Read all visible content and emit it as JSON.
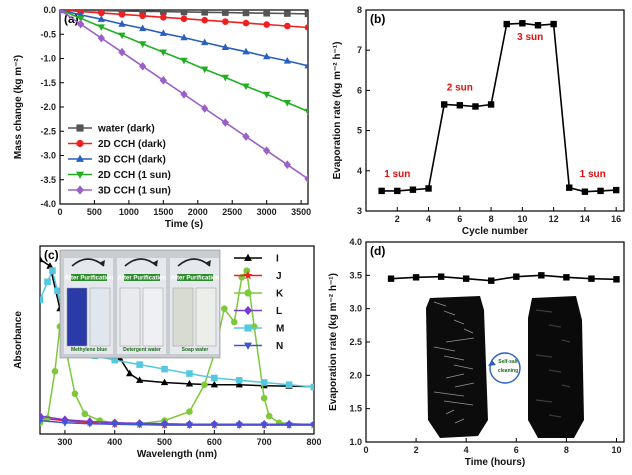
{
  "chart_data": [
    {
      "id": "a",
      "type": "line",
      "panel_label": "(a)",
      "xlabel": "Time (s)",
      "ylabel": "Mass change (kg m⁻²)",
      "xlim": [
        0,
        3600
      ],
      "ylim": [
        -4.0,
        0.0
      ],
      "xticks": [
        0,
        500,
        1000,
        1500,
        2000,
        2500,
        3000,
        3500
      ],
      "yticks": [
        0.0,
        -0.5,
        -1.0,
        -1.5,
        -2.0,
        -2.5,
        -3.0,
        -3.5,
        -4.0
      ],
      "ytick_labels": [
        "0.0",
        "-0.5",
        "-1.0",
        "-1.5",
        "-2.0",
        "-2.5",
        "-3.0",
        "-3.5",
        "-4.0"
      ],
      "legend_position": "lower-left",
      "series": [
        {
          "name": "water (dark)",
          "color": "#555555",
          "marker": "square",
          "x": [
            0,
            300,
            600,
            900,
            1200,
            1500,
            1800,
            2100,
            2400,
            2700,
            3000,
            3300,
            3600
          ],
          "y": [
            0,
            -0.007,
            -0.013,
            -0.02,
            -0.027,
            -0.033,
            -0.04,
            -0.047,
            -0.053,
            -0.06,
            -0.067,
            -0.073,
            -0.08
          ]
        },
        {
          "name": "2D CCH (dark)",
          "color": "#f02020",
          "marker": "circle",
          "x": [
            0,
            300,
            600,
            900,
            1200,
            1500,
            1800,
            2100,
            2400,
            2700,
            3000,
            3300,
            3600
          ],
          "y": [
            0,
            -0.03,
            -0.06,
            -0.09,
            -0.12,
            -0.15,
            -0.18,
            -0.21,
            -0.24,
            -0.27,
            -0.3,
            -0.33,
            -0.36
          ]
        },
        {
          "name": "3D CCH (dark)",
          "color": "#2a5fc0",
          "marker": "triangle-up",
          "x": [
            0,
            300,
            600,
            900,
            1200,
            1500,
            1800,
            2100,
            2400,
            2700,
            3000,
            3300,
            3600
          ],
          "y": [
            0,
            -0.1,
            -0.19,
            -0.29,
            -0.38,
            -0.48,
            -0.57,
            -0.67,
            -0.77,
            -0.86,
            -0.96,
            -1.05,
            -1.15
          ]
        },
        {
          "name": "2D CCH (1 sun)",
          "color": "#22b022",
          "marker": "triangle-down",
          "x": [
            0,
            300,
            600,
            900,
            1200,
            1500,
            1800,
            2100,
            2400,
            2700,
            3000,
            3300,
            3600
          ],
          "y": [
            0,
            -0.17,
            -0.35,
            -0.52,
            -0.7,
            -0.87,
            -1.04,
            -1.22,
            -1.39,
            -1.57,
            -1.74,
            -1.91,
            -2.09
          ]
        },
        {
          "name": "3D CCH (1 sun)",
          "color": "#9a60c8",
          "marker": "diamond",
          "x": [
            0,
            300,
            600,
            900,
            1200,
            1500,
            1800,
            2100,
            2400,
            2700,
            3000,
            3300,
            3600
          ],
          "y": [
            0,
            -0.29,
            -0.58,
            -0.87,
            -1.16,
            -1.45,
            -1.74,
            -2.03,
            -2.32,
            -2.61,
            -2.9,
            -3.19,
            -3.48
          ]
        }
      ]
    },
    {
      "id": "b",
      "type": "line",
      "panel_label": "(b)",
      "xlabel": "Cycle number",
      "ylabel": "Evaporation rate (kg m⁻² h⁻¹)",
      "xlim": [
        0,
        16.5
      ],
      "ylim": [
        3,
        8
      ],
      "xticks": [
        2,
        4,
        6,
        8,
        10,
        12,
        14,
        16
      ],
      "yticks": [
        3,
        4,
        5,
        6,
        7,
        8
      ],
      "series": [
        {
          "color": "#000000",
          "marker": "square",
          "x": [
            1,
            2,
            3,
            4,
            5,
            6,
            7,
            8,
            9,
            10,
            11,
            12,
            13,
            14,
            15,
            16
          ],
          "y": [
            3.5,
            3.5,
            3.53,
            3.56,
            5.65,
            5.63,
            5.6,
            5.65,
            7.65,
            7.67,
            7.62,
            7.65,
            3.58,
            3.48,
            3.5,
            3.52
          ]
        }
      ],
      "annotations": [
        {
          "text": "1 sun",
          "x": 2.0,
          "y": 3.85
        },
        {
          "text": "2 sun",
          "x": 6.0,
          "y": 6.0
        },
        {
          "text": "3 sun",
          "x": 10.5,
          "y": 7.25
        },
        {
          "text": "1 sun",
          "x": 14.5,
          "y": 3.85
        }
      ]
    },
    {
      "id": "c",
      "type": "line",
      "panel_label": "(c)",
      "xlabel": "Wavelength (nm)",
      "ylabel": "Absorbance",
      "xlim": [
        250,
        800
      ],
      "ylim": [
        -0.2,
        4.0
      ],
      "xticks": [
        300,
        400,
        500,
        600,
        700,
        800
      ],
      "legend_position": "right",
      "series": [
        {
          "name": "I",
          "color": "#000000",
          "marker": "triangle-up",
          "x": [
            250,
            270,
            290,
            310,
            330,
            350,
            370,
            390,
            410,
            430,
            450,
            500,
            550,
            600,
            650,
            700,
            750,
            800
          ],
          "y": [
            3.7,
            3.55,
            2.6,
            2.5,
            2.85,
            2.95,
            2.8,
            2.2,
            1.5,
            1.15,
            1.0,
            0.95,
            0.92,
            0.9,
            0.9,
            0.88,
            0.87,
            0.86
          ]
        },
        {
          "name": "J",
          "color": "#f02020",
          "marker": "star",
          "x": [
            250,
            300,
            350,
            400,
            450,
            500,
            550,
            600,
            650,
            700,
            750,
            800
          ],
          "y": [
            0.15,
            0.1,
            0.05,
            0.02,
            0.01,
            0.0,
            0.0,
            0.0,
            0.0,
            0.0,
            0.0,
            0.0
          ]
        },
        {
          "name": "K",
          "color": "#7ec83c",
          "marker": "circle",
          "x": [
            250,
            265,
            280,
            290,
            300,
            320,
            340,
            370,
            400,
            450,
            500,
            550,
            580,
            600,
            620,
            640,
            655,
            665,
            680,
            700,
            710,
            730,
            800
          ],
          "y": [
            0.05,
            0.15,
            1.2,
            2.2,
            1.8,
            0.7,
            0.25,
            0.1,
            0.05,
            0.03,
            0.1,
            0.3,
            0.9,
            1.6,
            2.6,
            2.3,
            3.3,
            3.45,
            2.2,
            0.6,
            0.2,
            0.05,
            0.0
          ]
        },
        {
          "name": "L",
          "color": "#7a3ad0",
          "marker": "diamond",
          "x": [
            250,
            300,
            350,
            400,
            450,
            500,
            550,
            600,
            650,
            700,
            750,
            800
          ],
          "y": [
            0.2,
            0.12,
            0.08,
            0.05,
            0.04,
            0.03,
            0.02,
            0.02,
            0.02,
            0.02,
            0.02,
            0.02
          ]
        },
        {
          "name": "M",
          "color": "#55c8e0",
          "marker": "square",
          "x": [
            250,
            265,
            275,
            285,
            300,
            330,
            360,
            400,
            450,
            500,
            550,
            600,
            650,
            700,
            750,
            800
          ],
          "y": [
            2.8,
            3.2,
            3.45,
            3.0,
            2.3,
            1.75,
            1.55,
            1.45,
            1.35,
            1.25,
            1.15,
            1.05,
            1.0,
            0.95,
            0.9,
            0.85
          ]
        },
        {
          "name": "N",
          "color": "#4055d0",
          "marker": "triangle-down",
          "x": [
            250,
            300,
            350,
            400,
            450,
            500,
            550,
            600,
            650,
            700,
            750,
            800
          ],
          "y": [
            0.1,
            0.05,
            0.03,
            0.02,
            0.01,
            0.0,
            0.0,
            0.0,
            0.0,
            0.0,
            0.0,
            0.0
          ]
        }
      ],
      "inset": {
        "photo_labels": [
          "After Purification",
          "After Purification",
          "After Purification"
        ],
        "captions": [
          "Methylene blue",
          "Detergent water",
          "Soap water"
        ]
      }
    },
    {
      "id": "d",
      "type": "line",
      "panel_label": "(d)",
      "xlabel": "Time (hours)",
      "ylabel": "Evaporation rate (kg m⁻² h⁻¹)",
      "xlim": [
        0,
        10.3
      ],
      "ylim": [
        1.0,
        4.0
      ],
      "xticks": [
        0,
        2,
        4,
        6,
        8,
        10
      ],
      "yticks": [
        1.0,
        1.5,
        2.0,
        2.5,
        3.0,
        3.5,
        4.0
      ],
      "ytick_labels": [
        "1.0",
        "1.5",
        "2.0",
        "2.5",
        "3.0",
        "3.5",
        "4.0"
      ],
      "series": [
        {
          "color": "#000000",
          "marker": "square",
          "x": [
            1,
            2,
            3,
            4,
            5,
            6,
            7,
            8,
            9,
            10
          ],
          "y": [
            3.45,
            3.47,
            3.48,
            3.45,
            3.42,
            3.48,
            3.5,
            3.47,
            3.45,
            3.44
          ]
        }
      ],
      "inset": {
        "label_line1": "Self-salt",
        "label_line2": "cleaning"
      }
    }
  ]
}
